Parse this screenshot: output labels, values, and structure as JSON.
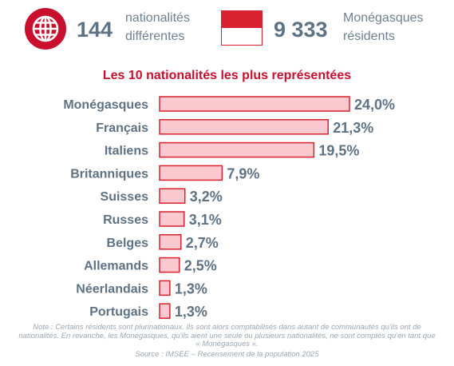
{
  "header": {
    "nationalities": {
      "number": "144",
      "label_line1": "nationalités",
      "label_line2": "différentes"
    },
    "residents": {
      "number": "9 333",
      "label_line1": "Monégasques",
      "label_line2": "résidents"
    },
    "icons": {
      "globe": "globe-icon",
      "flag": "monaco-flag-icon"
    }
  },
  "colors": {
    "accent": "#c8102e",
    "bar_fill": "#fbc8cf",
    "bar_stroke": "#d8222f",
    "text_gray": "#5f7283"
  },
  "chart_data": {
    "type": "bar",
    "orientation": "horizontal",
    "title": "Les 10 nationalités les plus représentées",
    "categories": [
      "Monégasques",
      "Français",
      "Italiens",
      "Britanniques",
      "Suisses",
      "Russes",
      "Belges",
      "Allemands",
      "Néerlandais",
      "Portugais"
    ],
    "values": [
      24.0,
      21.3,
      19.5,
      7.9,
      3.2,
      3.1,
      2.7,
      2.5,
      1.3,
      1.3
    ],
    "value_labels": [
      "24,0%",
      "21,3%",
      "19,5%",
      "7,9%",
      "3,2%",
      "3,1%",
      "2,7%",
      "2,5%",
      "1,3%",
      "1,3%"
    ],
    "unit": "%",
    "xlim": [
      0,
      24.0
    ],
    "grid": false,
    "legend": "none"
  },
  "footer": {
    "note": "Note : Certains résidents sont plurinationaux. Ils sont alors comptabilisés dans autant de communautés qu'ils ont de nationalités. En revanche, les Monégasques, qu'ils aient une seule ou plusieurs nationalités, ne sont comptés qu'en tant que « Monégasques ».",
    "source": "Source : IMSEE – Recensement de la population 2025"
  }
}
